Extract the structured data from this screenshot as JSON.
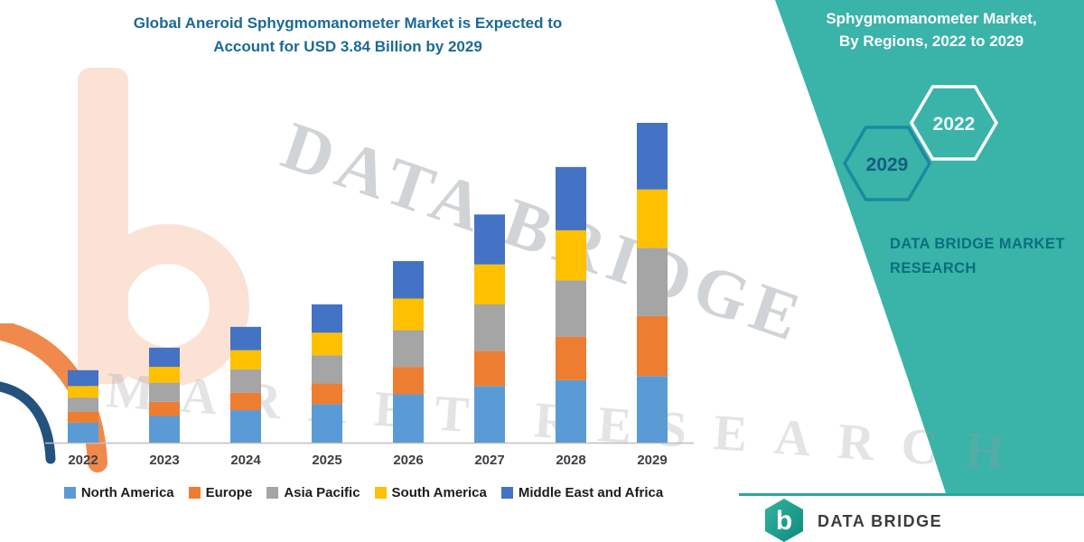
{
  "header": {
    "title_line1": "Global Aneroid Sphygmomanometer Market is Expected to",
    "title_line2": "Account for USD 3.84 Billion by 2029",
    "title_color": "#1b6a96"
  },
  "side_panel": {
    "bg_color": "#3ab3a9",
    "heading_line1": "Sphygmomanometer Market,",
    "heading_line2": "By Regions, 2022 to 2029",
    "hexagons": [
      {
        "year": "2022",
        "outline": "#ffffff",
        "text_color": "#eef9f7"
      },
      {
        "year": "2029",
        "outline": "#1b89a0",
        "text_color": "#145e80"
      }
    ],
    "brand_line1": "DATA BRIDGE MARKET",
    "brand_line2": "RESEARCH",
    "brand_color": "#0b6f80"
  },
  "watermark": {
    "line1": "DATA BRIDGE",
    "line2": "MARKET RESEARCH"
  },
  "footer": {
    "brand": "DATA BRIDGE",
    "logo_letter": "b",
    "line_color": "#2aa89e"
  },
  "chart_data": {
    "type": "bar",
    "stacked": true,
    "title": "Global Aneroid Sphygmomanometer Market is Expected to Account for USD 3.84 Billion by 2029",
    "unit": "USD Billion (estimated from bar heights; no y-axis shown)",
    "categories": [
      "2022",
      "2023",
      "2024",
      "2025",
      "2026",
      "2027",
      "2028",
      "2029"
    ],
    "series": [
      {
        "name": "North America",
        "color": "#5B9BD5",
        "values": [
          0.24,
          0.32,
          0.39,
          0.46,
          0.58,
          0.68,
          0.75,
          0.8
        ]
      },
      {
        "name": "Europe",
        "color": "#ED7D31",
        "values": [
          0.13,
          0.17,
          0.21,
          0.25,
          0.33,
          0.42,
          0.52,
          0.72
        ]
      },
      {
        "name": "Asia Pacific",
        "color": "#A5A5A5",
        "values": [
          0.17,
          0.23,
          0.28,
          0.34,
          0.44,
          0.56,
          0.68,
          0.82
        ]
      },
      {
        "name": "South America",
        "color": "#FFC000",
        "values": [
          0.14,
          0.19,
          0.23,
          0.27,
          0.38,
          0.48,
          0.6,
          0.7
        ]
      },
      {
        "name": "Middle East and Africa",
        "color": "#4472C4",
        "values": [
          0.19,
          0.23,
          0.28,
          0.34,
          0.45,
          0.6,
          0.76,
          0.8
        ]
      }
    ],
    "totals": [
      0.87,
      1.14,
      1.39,
      1.66,
      2.18,
      2.74,
      3.31,
      3.84
    ],
    "xlabel": "",
    "ylabel": "",
    "ylim": [
      0,
      4
    ],
    "grid": false,
    "legend_position": "bottom"
  }
}
